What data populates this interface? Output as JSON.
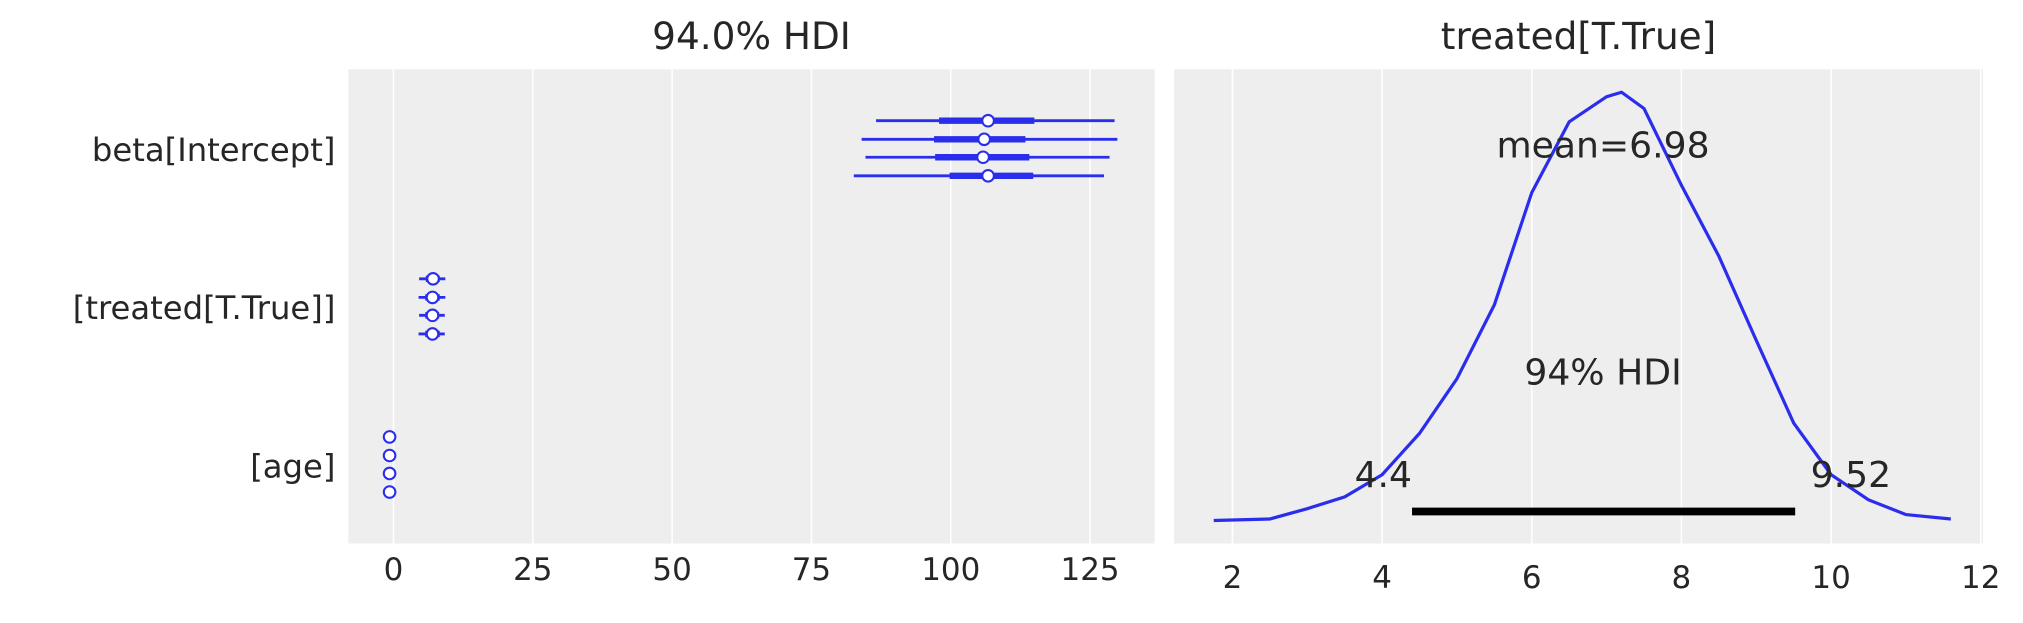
{
  "chart_data": [
    {
      "type": "forest",
      "title": "94.0% HDI",
      "categories": [
        "beta[Intercept]",
        "[treated[T.True]]",
        "[age]"
      ],
      "rows": [
        {
          "chains": [
            {
              "median": 106.7,
              "hdi": [
                86.6,
                129.4
              ],
              "iqr": [
                97.9,
                115.0
              ]
            },
            {
              "median": 106.0,
              "hdi": [
                84.0,
                129.9
              ],
              "iqr": [
                97.0,
                113.4
              ]
            },
            {
              "median": 105.8,
              "hdi": [
                84.7,
                128.5
              ],
              "iqr": [
                97.2,
                114.1
              ]
            },
            {
              "median": 106.7,
              "hdi": [
                82.6,
                127.5
              ],
              "iqr": [
                99.8,
                114.8
              ]
            }
          ]
        },
        {
          "chains": [
            {
              "median": 7.1,
              "hdi": [
                4.6,
                9.3
              ],
              "iqr": [
                5.8,
                8.3
              ]
            },
            {
              "median": 7.0,
              "hdi": [
                4.5,
                9.3
              ],
              "iqr": [
                5.7,
                8.3
              ]
            },
            {
              "median": 7.0,
              "hdi": [
                4.6,
                9.2
              ],
              "iqr": [
                5.7,
                8.2
              ]
            },
            {
              "median": 7.0,
              "hdi": [
                4.5,
                9.2
              ],
              "iqr": [
                5.7,
                8.3
              ]
            }
          ]
        },
        {
          "chains": [
            {
              "median": -0.7,
              "hdi": [
                -0.9,
                -0.5
              ],
              "iqr": [
                -0.8,
                -0.6
              ]
            },
            {
              "median": -0.7,
              "hdi": [
                -0.9,
                -0.5
              ],
              "iqr": [
                -0.8,
                -0.6
              ]
            },
            {
              "median": -0.7,
              "hdi": [
                -0.9,
                -0.5
              ],
              "iqr": [
                -0.8,
                -0.6
              ]
            },
            {
              "median": -0.7,
              "hdi": [
                -0.9,
                -0.5
              ],
              "iqr": [
                -0.8,
                -0.6
              ]
            }
          ]
        }
      ],
      "color": "#2a2eec",
      "xlim": [
        -8.1,
        136.6
      ],
      "xticks": [
        0,
        25,
        50,
        75,
        100,
        125
      ],
      "grid": true
    },
    {
      "type": "density",
      "title": "treated[T.True]",
      "x": [
        1.75,
        2.5,
        3.0,
        3.5,
        4.0,
        4.5,
        5.0,
        5.5,
        6.0,
        6.5,
        7.0,
        7.2,
        7.5,
        8.0,
        8.5,
        9.0,
        9.5,
        10.0,
        10.5,
        11.0,
        11.6
      ],
      "values": [
        0,
        0.001,
        0.008,
        0.016,
        0.031,
        0.059,
        0.096,
        0.146,
        0.222,
        0.27,
        0.287,
        0.29,
        0.279,
        0.227,
        0.179,
        0.122,
        0.066,
        0.031,
        0.014,
        0.004,
        0.001
      ],
      "color": "#2a2eec",
      "xlim": [
        1.22,
        12.03
      ],
      "ylim": [
        -0.0156,
        0.3056
      ],
      "xticks": [
        2,
        4,
        6,
        8,
        10,
        12
      ],
      "grid": true,
      "mean_label": "mean=6.98",
      "hdi_label": "94% HDI",
      "hdi": [
        4.4,
        9.52
      ]
    }
  ]
}
